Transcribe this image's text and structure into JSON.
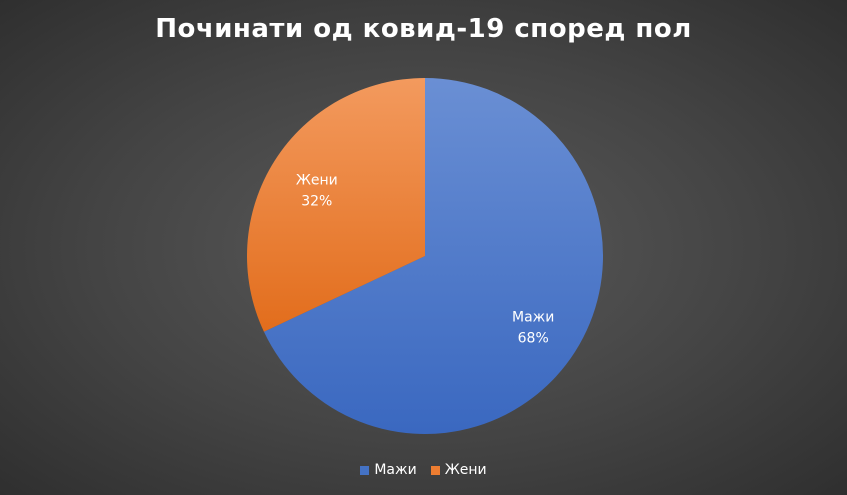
{
  "chart_data": {
    "type": "pie",
    "title": "Починати од ковид-19 според пол",
    "slices": [
      {
        "name": "Мажи",
        "value": 68,
        "label_value": "68%",
        "color": "#4472C4"
      },
      {
        "name": "Жени",
        "value": 32,
        "label_value": "32%",
        "color": "#ED7D31"
      }
    ],
    "start_angle_deg": 0,
    "direction": "clockwise",
    "legend_position": "bottom",
    "data_labels": "category-and-percent"
  }
}
